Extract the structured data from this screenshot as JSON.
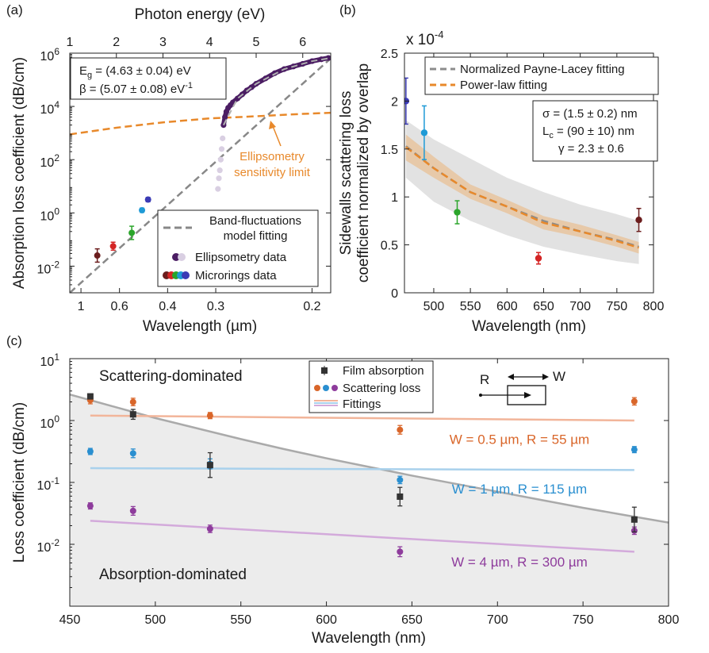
{
  "panel_a": {
    "label": "(a)",
    "chart_data": {
      "type": "scatter",
      "xlabel": "Wavelength (µm)",
      "x2label": "Photon energy (eV)",
      "ylabel": "Absorption loss coefficient (dB/cm)",
      "xscale": "energy (1/wavelength)",
      "xlim_eV": [
        1.0,
        6.6
      ],
      "ylim_log10": [
        -3,
        6
      ],
      "x_ticks_um": [
        "1",
        "0.6",
        "0.4",
        "0.3",
        "0.2"
      ],
      "x_tick_values_um": [
        1.0,
        0.6,
        0.4,
        0.3,
        0.2
      ],
      "x2_ticks": [
        "1",
        "2",
        "3",
        "4",
        "5",
        "6"
      ],
      "y_ticks": [
        {
          "base": "10",
          "exp": "-2",
          "value": -2
        },
        {
          "base": "10",
          "exp": "0",
          "value": 0
        },
        {
          "base": "10",
          "exp": "2",
          "value": 2
        },
        {
          "base": "10",
          "exp": "4",
          "value": 4
        },
        {
          "base": "10",
          "exp": "6",
          "value": 6
        }
      ],
      "fit_params": {
        "Eg_sym": "E",
        "Eg_sub": "g",
        "Eg_value": " = (4.63 ± 0.04) eV",
        "beta_prefix": "β = (5.07 ± 0.08) eV",
        "beta_sup": "-1"
      },
      "series": [
        {
          "name": "Band-fluctuations model fitting",
          "name_line1": "Band-fluctuations",
          "name_line2": "model fitting",
          "style": "dashed",
          "color": "#888888",
          "x_eV": [
            1.0,
            6.6
          ],
          "log10_y": [
            -3.0,
            5.8
          ]
        },
        {
          "name": "Ellipsometry sensitivity limit",
          "style": "dashed",
          "color": "#e8892b",
          "x_eV": [
            1.0,
            2.0,
            3.0,
            4.0,
            5.0,
            6.0,
            6.6
          ],
          "log10_y": [
            2.95,
            3.2,
            3.4,
            3.55,
            3.63,
            3.72,
            3.76
          ]
        },
        {
          "name": "Ellipsometry data",
          "style": "points",
          "color": "#4b1d63",
          "faded_color": "#d9cfe2",
          "x_eV": [
            4.18,
            4.2,
            4.22,
            4.24,
            4.26,
            4.28,
            4.3,
            4.33,
            4.36,
            4.4,
            4.45,
            4.5,
            4.6,
            4.7,
            4.8,
            4.9,
            5.0,
            5.2,
            5.4,
            5.6,
            5.8,
            6.0,
            6.2,
            6.4,
            6.55
          ],
          "log10_y": [
            0.9,
            1.3,
            1.6,
            2.0,
            2.4,
            2.8,
            3.3,
            3.6,
            3.8,
            3.95,
            4.05,
            4.15,
            4.3,
            4.45,
            4.6,
            4.72,
            4.85,
            5.05,
            5.25,
            5.4,
            5.5,
            5.6,
            5.7,
            5.77,
            5.82
          ],
          "faded_upto_eV": 4.3
        },
        {
          "name": "Microrings data",
          "style": "errorbars",
          "points": [
            {
              "x_eV": 1.59,
              "log10_y": -1.6,
              "log10_err": 0.25,
              "color": "#6b1d1d"
            },
            {
              "x_eV": 1.93,
              "log10_y": -1.25,
              "log10_err": 0.15,
              "color": "#d42525"
            },
            {
              "x_eV": 2.33,
              "log10_y": -0.75,
              "log10_err": 0.25,
              "color": "#2aa52a"
            },
            {
              "x_eV": 2.55,
              "log10_y": 0.1,
              "log10_err": 0.08,
              "color": "#1e9ad6"
            },
            {
              "x_eV": 2.68,
              "log10_y": 0.5,
              "log10_err": 0.08,
              "color": "#3b3bb5"
            }
          ]
        }
      ],
      "annotation": {
        "text_line1": "Ellipsometry",
        "text_line2": "sensitivity limit",
        "color": "#e8892b"
      },
      "legend": [
        "Band-fluctuations model fitting",
        "Ellipsometry data",
        "Microrings data"
      ]
    }
  },
  "panel_b": {
    "label": "(b)",
    "chart_data": {
      "type": "line",
      "xlabel": "Wavelength (nm)",
      "ylabel_line1": "Sidewalls scattering loss",
      "ylabel_line2": "coefficient normalized by overlap",
      "y_multiplier_base": "x 10",
      "y_multiplier_exp": "-4",
      "xlim": [
        460,
        800
      ],
      "ylim": [
        0,
        2.5
      ],
      "x_ticks": [
        "500",
        "550",
        "600",
        "650",
        "700",
        "750",
        "800"
      ],
      "y_ticks": [
        "0",
        "0.5",
        "1",
        "1.5",
        "2",
        "2.5"
      ],
      "series": [
        {
          "name": "Normalized Payne-Lacey fitting",
          "style": "dashed",
          "color": "#8c8c8c",
          "x": [
            462,
            500,
            550,
            600,
            650,
            700,
            750,
            780
          ],
          "y": [
            1.53,
            1.3,
            1.05,
            0.9,
            0.75,
            0.64,
            0.55,
            0.48
          ],
          "band_low": [
            1.2,
            0.95,
            0.75,
            0.6,
            0.48,
            0.4,
            0.33,
            0.3
          ],
          "band_high": [
            1.8,
            1.6,
            1.4,
            1.2,
            1.05,
            0.92,
            0.82,
            0.75
          ]
        },
        {
          "name": "Power-law fitting",
          "style": "dashed",
          "color": "#e8892b",
          "x": [
            462,
            500,
            550,
            600,
            650,
            700,
            750,
            780
          ],
          "y": [
            1.52,
            1.3,
            1.05,
            0.9,
            0.73,
            0.64,
            0.54,
            0.47
          ],
          "band_low": [
            1.38,
            1.2,
            0.98,
            0.83,
            0.66,
            0.58,
            0.48,
            0.41
          ],
          "band_high": [
            1.65,
            1.42,
            1.13,
            0.97,
            0.8,
            0.71,
            0.6,
            0.53
          ]
        }
      ],
      "points": [
        {
          "x": 462,
          "y": 2.0,
          "err": 0.24,
          "color": "#3b3bb5"
        },
        {
          "x": 487,
          "y": 1.67,
          "err": 0.28,
          "color": "#1e9ad6"
        },
        {
          "x": 532,
          "y": 0.84,
          "err": 0.12,
          "color": "#2aa52a"
        },
        {
          "x": 643,
          "y": 0.36,
          "err": 0.06,
          "color": "#d42525"
        },
        {
          "x": 780,
          "y": 0.76,
          "err": 0.12,
          "color": "#6b1d1d"
        }
      ],
      "params": {
        "sigma": "σ = (1.5 ± 0.2) nm",
        "Lc_sym": "L",
        "Lc_sub": "c",
        "Lc_value": " = (90 ± 10) nm",
        "gamma": "γ = 2.3 ± 0.6"
      },
      "legend": [
        "Normalized Payne-Lacey fitting",
        "Power-law fitting"
      ]
    }
  },
  "panel_c": {
    "label": "(c)",
    "chart_data": {
      "type": "scatter",
      "xlabel": "Wavelength (nm)",
      "ylabel": "Loss coefficient (dB/cm)",
      "xlim": [
        450,
        800
      ],
      "ylim_log10": [
        -3,
        1
      ],
      "x_ticks": [
        "450",
        "500",
        "550",
        "600",
        "650",
        "700",
        "750",
        "800"
      ],
      "y_ticks": [
        {
          "base": "10",
          "exp": "-2",
          "value": -2
        },
        {
          "base": "10",
          "exp": "-1",
          "value": -1
        },
        {
          "base": "10",
          "exp": "0",
          "value": 0
        },
        {
          "base": "10",
          "exp": "1",
          "value": 1
        }
      ],
      "region_labels": {
        "upper": "Scattering-dominated",
        "lower": "Absorption-dominated"
      },
      "absorption_curve": {
        "x": [
          450,
          475,
          500,
          525,
          550,
          575,
          600,
          625,
          650,
          675,
          700,
          725,
          750,
          775,
          800
        ],
        "log10_y": [
          0.42,
          0.23,
          0.04,
          -0.13,
          -0.3,
          -0.46,
          -0.61,
          -0.75,
          -0.89,
          -1.02,
          -1.15,
          -1.28,
          -1.41,
          -1.53,
          -1.65
        ],
        "color": "#aaaaaa"
      },
      "film_absorption": {
        "name": "Film absorption",
        "color": "#333333",
        "x": [
          462,
          487,
          532,
          643,
          780
        ],
        "log10_y": [
          0.39,
          0.1,
          -0.72,
          -1.23,
          -1.6
        ],
        "log10_err": [
          0.04,
          0.08,
          0.2,
          0.15,
          0.2
        ]
      },
      "scattering_legend": "Scattering loss",
      "fittings_legend": "Fittings",
      "groups": [
        {
          "label_prefix": "W = 0.5 µm, R = 55 µm",
          "color": "#d9662a",
          "fit_color": "#f2b59a",
          "x": [
            462,
            487,
            532,
            643,
            780
          ],
          "log10_y": [
            0.33,
            0.3,
            0.08,
            -0.15,
            0.31
          ],
          "log10_err": [
            0.06,
            0.06,
            0.05,
            0.07,
            0.06
          ],
          "fit_log10": [
            0.08,
            0.0
          ]
        },
        {
          "label_prefix": "W = 1 µm, R = 115 µm",
          "color": "#2a8fd0",
          "fit_color": "#a9d1ec",
          "x": [
            462,
            487,
            532,
            643,
            780
          ],
          "log10_y": [
            -0.5,
            -0.53,
            -0.7,
            -0.96,
            -0.47
          ],
          "log10_err": [
            0.05,
            0.07,
            0.08,
            0.06,
            0.05
          ],
          "fit_log10": [
            -0.77,
            -0.8
          ]
        },
        {
          "label_prefix": "W = 4 µm, R = 300 µm",
          "color": "#8e3c9c",
          "fit_color": "#d3aadb",
          "x": [
            462,
            487,
            532,
            643,
            780
          ],
          "log10_y": [
            -1.38,
            -1.46,
            -1.75,
            -2.12,
            -1.78
          ],
          "log10_err": [
            0.05,
            0.07,
            0.06,
            0.08,
            0.06
          ],
          "fit_log10": [
            -1.62,
            -2.12
          ]
        }
      ],
      "inset": {
        "R": "R",
        "W": "W"
      }
    }
  }
}
